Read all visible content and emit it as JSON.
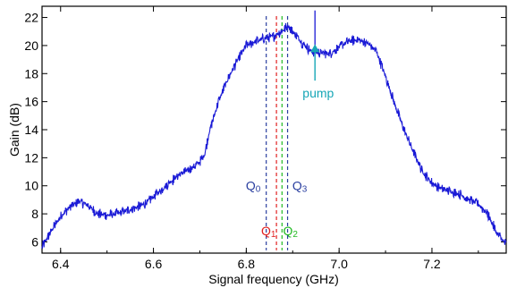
{
  "chart_data": {
    "type": "line",
    "title": "",
    "xlabel": "Signal frequency (GHz)",
    "ylabel": "Gain (dB)",
    "xlim": [
      6.36,
      7.36
    ],
    "ylim": [
      5.2,
      22.8
    ],
    "xticks": [
      6.4,
      6.6,
      6.8,
      7.0,
      7.2
    ],
    "xtick_labels": [
      "6.4",
      "6.6",
      "6.8",
      "7.0",
      "7.2"
    ],
    "yticks": [
      6,
      8,
      10,
      12,
      14,
      16,
      18,
      20,
      22
    ],
    "ytick_labels": [
      "6",
      "8",
      "10",
      "12",
      "14",
      "16",
      "18",
      "20",
      "22"
    ],
    "grid": false,
    "series": [
      {
        "color": "#1a1ad6",
        "x": [
          6.36,
          6.38,
          6.4,
          6.42,
          6.44,
          6.46,
          6.48,
          6.5,
          6.52,
          6.54,
          6.56,
          6.58,
          6.6,
          6.62,
          6.64,
          6.66,
          6.68,
          6.7,
          6.71,
          6.72,
          6.74,
          6.76,
          6.78,
          6.8,
          6.82,
          6.84,
          6.86,
          6.88,
          6.89,
          6.9,
          6.92,
          6.94,
          6.96,
          6.98,
          7.0,
          7.02,
          7.04,
          7.06,
          7.08,
          7.1,
          7.12,
          7.14,
          7.16,
          7.18,
          7.2,
          7.22,
          7.24,
          7.26,
          7.28,
          7.3,
          7.32,
          7.34,
          7.36
        ],
        "y": [
          5.6,
          6.8,
          7.8,
          8.5,
          8.9,
          8.6,
          8.0,
          7.9,
          8.0,
          8.2,
          8.4,
          8.7,
          9.2,
          9.8,
          10.4,
          10.9,
          11.2,
          11.7,
          12.2,
          13.8,
          16.0,
          17.6,
          18.9,
          20.0,
          20.3,
          20.5,
          20.7,
          21.1,
          21.4,
          21.0,
          20.2,
          19.6,
          19.5,
          19.4,
          19.9,
          20.3,
          20.4,
          20.2,
          19.6,
          17.8,
          15.8,
          14.0,
          12.4,
          11.0,
          10.2,
          9.8,
          9.6,
          9.4,
          9.0,
          8.7,
          8.0,
          6.6,
          5.8
        ]
      }
    ],
    "markers": [
      {
        "name": "Q",
        "sub": "0",
        "x": 6.843,
        "color": "#2a3fa0",
        "label_x": 6.815,
        "label_y": 10.0
      },
      {
        "name": "Q",
        "sub": "1",
        "x": 6.865,
        "color": "#e02020",
        "label_x": 6.848,
        "label_y": 6.8
      },
      {
        "name": "Q",
        "sub": "2",
        "x": 6.877,
        "color": "#22bb22",
        "label_x": 6.895,
        "label_y": 6.8
      },
      {
        "name": "Q",
        "sub": "3",
        "x": 6.889,
        "color": "#2a3fa0",
        "label_x": 6.915,
        "label_y": 10.0
      }
    ],
    "annotation": {
      "text": "pump",
      "color": "#16a6b6",
      "x": 6.948,
      "y": 20.1,
      "text_x": 6.955,
      "text_y": 16.6
    },
    "pump_spike": {
      "x": 6.948,
      "y": 22.5
    }
  }
}
